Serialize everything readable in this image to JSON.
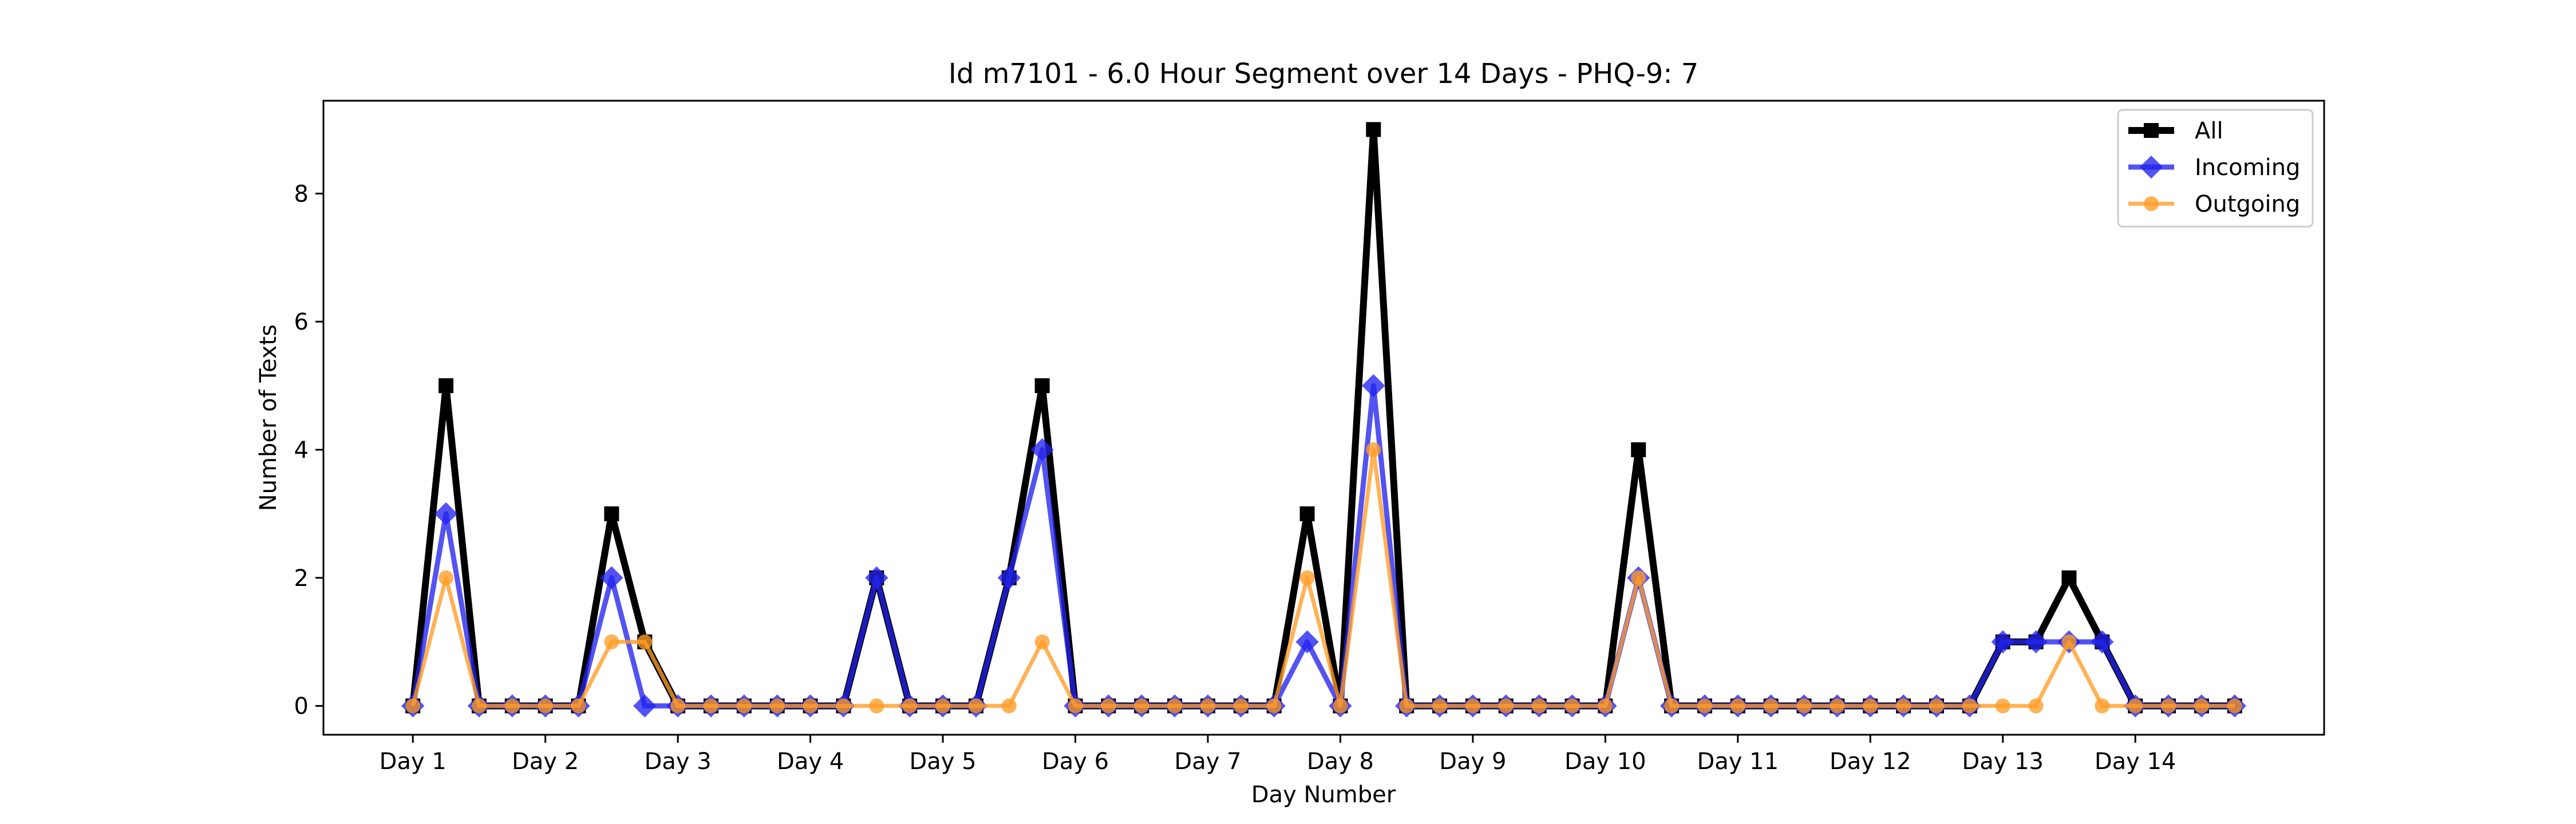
{
  "chart_data": {
    "type": "line",
    "title": "Id m7101 - 6.0 Hour Segment over 14 Days - PHQ-9: 7",
    "xlabel": "Day Number",
    "ylabel": "Number of Texts",
    "x": [
      0,
      1,
      2,
      3,
      4,
      5,
      6,
      7,
      8,
      9,
      10,
      11,
      12,
      13,
      14,
      15,
      16,
      17,
      18,
      19,
      20,
      21,
      22,
      23,
      24,
      25,
      26,
      27,
      28,
      29,
      30,
      31,
      32,
      33,
      34,
      35,
      36,
      37,
      38,
      39,
      40,
      41,
      42,
      43,
      44,
      45,
      46,
      47,
      48,
      49,
      50,
      51,
      52,
      53,
      54,
      55
    ],
    "x_ticks": [
      {
        "pos": 0,
        "label": "Day 1"
      },
      {
        "pos": 4,
        "label": "Day 2"
      },
      {
        "pos": 8,
        "label": "Day 3"
      },
      {
        "pos": 12,
        "label": "Day 4"
      },
      {
        "pos": 16,
        "label": "Day 5"
      },
      {
        "pos": 20,
        "label": "Day 6"
      },
      {
        "pos": 24,
        "label": "Day 7"
      },
      {
        "pos": 28,
        "label": "Day 8"
      },
      {
        "pos": 32,
        "label": "Day 9"
      },
      {
        "pos": 36,
        "label": "Day 10"
      },
      {
        "pos": 40,
        "label": "Day 11"
      },
      {
        "pos": 44,
        "label": "Day 12"
      },
      {
        "pos": 48,
        "label": "Day 13"
      },
      {
        "pos": 52,
        "label": "Day 14"
      }
    ],
    "y_ticks": [
      0,
      2,
      4,
      6,
      8
    ],
    "xlim": [
      -2.7,
      57.7
    ],
    "ylim": [
      -0.45,
      9.45
    ],
    "legend_position": "top-right",
    "grid": false,
    "series": [
      {
        "name": "All",
        "color": "#000000",
        "marker": "square",
        "values": [
          0,
          5,
          0,
          0,
          0,
          0,
          3,
          1,
          0,
          0,
          0,
          0,
          0,
          0,
          2,
          0,
          0,
          0,
          2,
          5,
          0,
          0,
          0,
          0,
          0,
          0,
          0,
          3,
          0,
          9,
          0,
          0,
          0,
          0,
          0,
          0,
          0,
          4,
          0,
          0,
          0,
          0,
          0,
          0,
          0,
          0,
          0,
          0,
          1,
          1,
          2,
          1,
          0,
          0,
          0,
          0
        ]
      },
      {
        "name": "Incoming",
        "color": "#2222ee",
        "marker": "diamond",
        "values": [
          0,
          3,
          0,
          0,
          0,
          0,
          2,
          0,
          0,
          0,
          0,
          0,
          0,
          0,
          2,
          0,
          0,
          0,
          2,
          4,
          0,
          0,
          0,
          0,
          0,
          0,
          0,
          1,
          0,
          5,
          0,
          0,
          0,
          0,
          0,
          0,
          0,
          2,
          0,
          0,
          0,
          0,
          0,
          0,
          0,
          0,
          0,
          0,
          1,
          1,
          1,
          1,
          0,
          0,
          0,
          0
        ]
      },
      {
        "name": "Outgoing",
        "color": "#ff9c27",
        "marker": "circle",
        "values": [
          0,
          2,
          0,
          0,
          0,
          0,
          1,
          1,
          0,
          0,
          0,
          0,
          0,
          0,
          0,
          0,
          0,
          0,
          0,
          1,
          0,
          0,
          0,
          0,
          0,
          0,
          0,
          2,
          0,
          4,
          0,
          0,
          0,
          0,
          0,
          0,
          0,
          2,
          0,
          0,
          0,
          0,
          0,
          0,
          0,
          0,
          0,
          0,
          0,
          0,
          1,
          0,
          0,
          0,
          0,
          0
        ]
      }
    ]
  }
}
